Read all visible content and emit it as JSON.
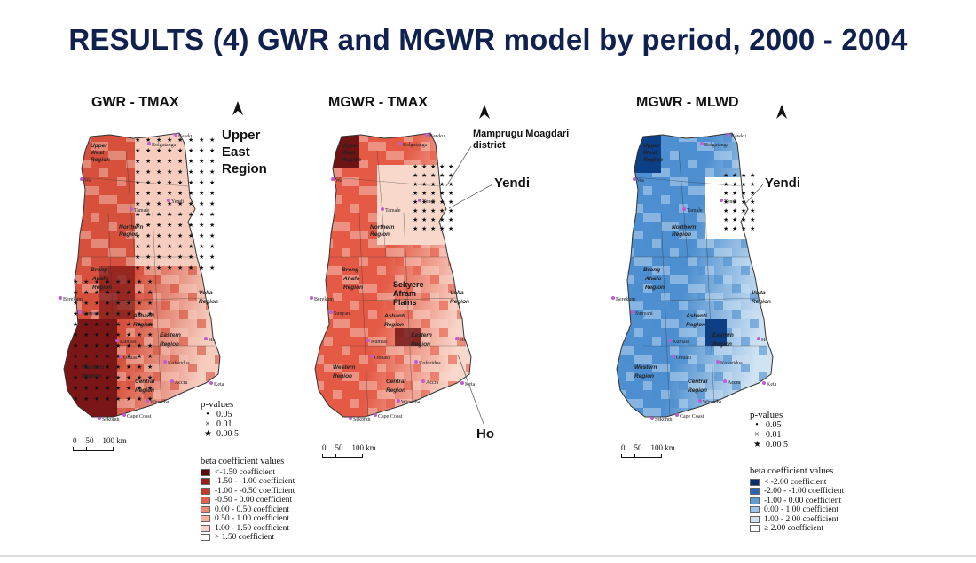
{
  "slide": {
    "title": "RESULTS (4) GWR and MGWR model by period, 2000 - 2004"
  },
  "panels": [
    {
      "title": "GWR - TMAX",
      "fill_dark": "#7a1616",
      "fill_mid": "#d6503c",
      "fill_light": "#f6cdbf",
      "callouts": [
        "Upper\nEast\nRegion"
      ]
    },
    {
      "title": "MGWR - TMAX",
      "fill_dark": "#6e1414",
      "fill_mid": "#e45a45",
      "fill_light": "#f9d8cc",
      "callouts": [
        "Mamprugu Moagdari\ndistrict",
        "Yendi",
        "Ho",
        "Sekyere\nAfram\nPlains"
      ]
    },
    {
      "title": "MGWR - MLWD",
      "fill_dark": "#0d3f86",
      "fill_mid": "#4d8fd0",
      "fill_light": "#cfe3f3",
      "callouts": [
        "Yendi"
      ]
    }
  ],
  "map_labels": {
    "places": [
      "Bawku",
      "Bolgatanga",
      "Wa",
      "Tamale",
      "Yendi",
      "Berekum",
      "Sunyani",
      "Kumasi",
      "Obuasi",
      "Koforidua",
      "Ho",
      "Accra",
      "Keta",
      "Winneba",
      "Cape Coast",
      "Sekondi"
    ],
    "regions": [
      "Upper West Region",
      "Northern Region",
      "Brong Ahafo Region",
      "Ashanti Region",
      "Eastern Region",
      "Volta Region",
      "Western Region",
      "Central Region"
    ]
  },
  "scale_bar": {
    "ticks": [
      "0",
      "50",
      "100 km"
    ]
  },
  "pvalues": {
    "title": "p-values",
    "items": [
      {
        "symbol": "•",
        "label": "0.05"
      },
      {
        "symbol": "×",
        "label": "0.01"
      },
      {
        "symbol": "★",
        "label": "0.00 5"
      }
    ]
  },
  "legend_tmax": {
    "title": "beta coefficient values",
    "items": [
      {
        "label": "<-1.50 coefficient",
        "color": "#5e0a0a"
      },
      {
        "label": "-1.50  -  -1.00 coefficient",
        "color": "#9b1b1b"
      },
      {
        "label": "-1.00  -  -0.50 coefficient",
        "color": "#c83a2c"
      },
      {
        "label": "-0.50  -  0.00  coefficient",
        "color": "#e4624b"
      },
      {
        "label": "0.00  -  0.50  coefficient",
        "color": "#f08a72"
      },
      {
        "label": "0.50  -  1.00  coefficient",
        "color": "#f6b19e"
      },
      {
        "label": "1.00  -  1.50  coefficient",
        "color": "#fbd5c9"
      },
      {
        "label": "> 1.50 coefficient",
        "color": "#ffffff"
      }
    ]
  },
  "legend_mlwd": {
    "title": "beta coefficient values",
    "items": [
      {
        "label": "< -2.00 coefficient",
        "color": "#0b2f6e"
      },
      {
        "label": "-2.00  -  -1.00 coefficient",
        "color": "#2566b5"
      },
      {
        "label": "-1.00  -  0.00  coefficient",
        "color": "#5a9bd8"
      },
      {
        "label": "0.00  -  1.00  coefficient",
        "color": "#9cc5e8"
      },
      {
        "label": "1.00  -  2.00  coefficient",
        "color": "#cfe2f3"
      },
      {
        "label": "≥ 2.00 coefficient",
        "color": "#ffffff"
      }
    ]
  }
}
